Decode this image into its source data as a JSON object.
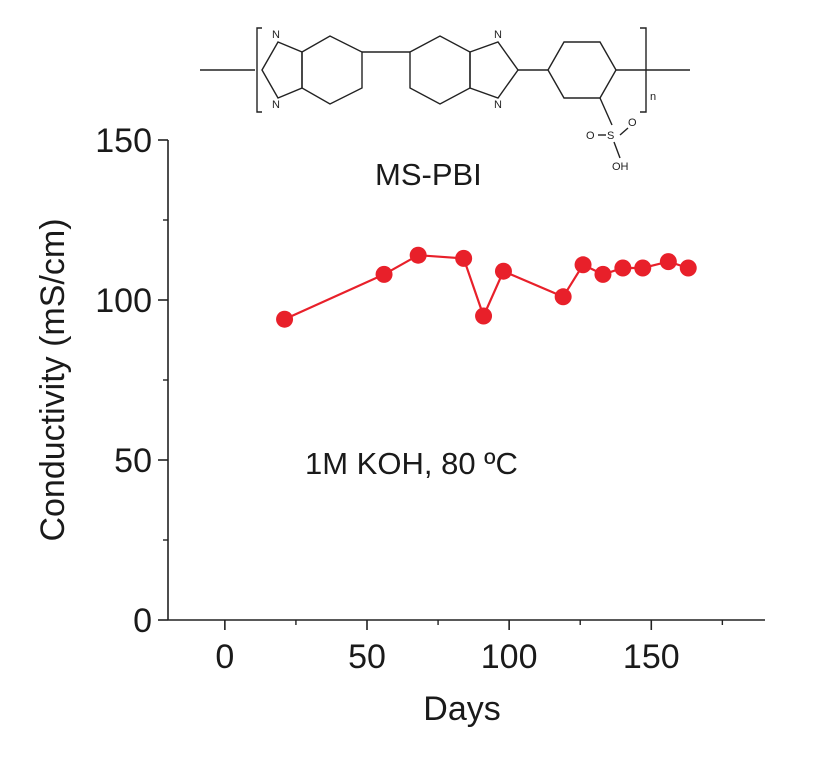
{
  "chart_data": {
    "type": "line",
    "xlabel": "Days",
    "ylabel": "Conductivity (mS/cm)",
    "xlim": [
      -20,
      190
    ],
    "ylim": [
      0,
      150
    ],
    "x_ticks": [
      "0",
      "50",
      "100",
      "150"
    ],
    "y_ticks": [
      "0",
      "50",
      "100",
      "150"
    ],
    "x_tick_values": [
      0,
      50,
      100,
      150
    ],
    "y_tick_values": [
      0,
      50,
      100,
      150
    ],
    "series": [
      {
        "color": "#e8202a",
        "marker": "circle",
        "x": [
          21,
          56,
          68,
          84,
          91,
          98,
          119,
          126,
          133,
          140,
          147,
          156,
          163
        ],
        "y": [
          94,
          108,
          114,
          113,
          95,
          109,
          101,
          111,
          108,
          110,
          110,
          112,
          110
        ]
      }
    ],
    "annotations": [
      "MS-PBI",
      "1M KOH, 80 ºC"
    ],
    "grid": false
  },
  "structure_labels": {
    "n1": "N",
    "n2": "N",
    "n3": "N",
    "n4": "N",
    "repeat": "n",
    "o1": "O",
    "s": "S",
    "o2": "O",
    "oh": "OH"
  }
}
